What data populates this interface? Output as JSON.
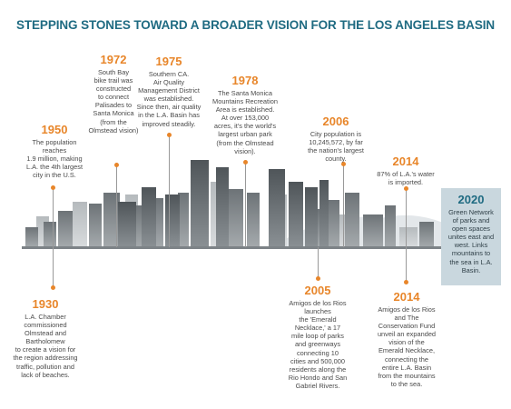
{
  "title": "STEPPING STONES TOWARD A BROADER VISION FOR THE LOS ANGELES BASIN",
  "colors": {
    "title": "#1f6b82",
    "year": "#e8862a",
    "dot": "#e8862a",
    "box_2020": "#c9d7de",
    "skyline_dark": "#5e6468",
    "skyline_light": "#c4c8cb"
  },
  "events": [
    {
      "year": "1930",
      "lines": [
        "L.A. Chamber",
        "commissioned",
        "Olmstead and",
        "Bartholomew",
        "to create a vision for",
        "the region addressing",
        "traffic, pollution and",
        "lack of beaches."
      ]
    },
    {
      "year": "1950",
      "lines": [
        "The population",
        "reaches",
        "1.9 million, making",
        "L.A. the 4th largest",
        "city in the U.S."
      ]
    },
    {
      "year": "1972",
      "lines": [
        "South Bay",
        "bike trail was",
        "constructed",
        "to connect",
        "Palisades to",
        "Santa Monica",
        "(from the",
        "Olmstead vision)"
      ]
    },
    {
      "year": "1975",
      "lines": [
        "Southern CA.",
        "Air Quality",
        "Management District",
        "was established.",
        "Since then, air quality",
        "in the L.A. Basin has",
        "improved steadily."
      ]
    },
    {
      "year": "1978",
      "lines": [
        "The Santa Monica",
        "Mountains Recreation",
        "Area is established.",
        "At over 153,000",
        "acres, it's the world's",
        "largest urban park",
        "(from the Olmstead",
        "vision)."
      ]
    },
    {
      "year": "2005",
      "lines": [
        "Amigos de los Rios",
        "launches",
        "the 'Emerald",
        "Necklace,' a 17",
        "mile loop of parks",
        "and greenways",
        "connecting 10",
        "cities and 500,000",
        "residents along the",
        "Rio Hondo and San",
        "Gabriel Rivers."
      ]
    },
    {
      "year": "2006",
      "lines": [
        "City population is",
        "10,245,572, by far",
        "the nation's largest",
        "county."
      ]
    },
    {
      "year": "2014",
      "lines": [
        "87% of L.A.'s water",
        "is imported."
      ]
    },
    {
      "year": "2014",
      "lines": [
        "Amigos de los Rios",
        "and The",
        "Conservation Fund",
        "unveil an expanded",
        "vision of the",
        "Emerald Necklace,",
        "connecting the",
        "entire L.A. Basin",
        "from the mountains",
        "to the sea."
      ]
    },
    {
      "year": "2020",
      "lines": [
        "Green Network",
        "of parks and",
        "open spaces",
        "unites east and",
        "west. Links",
        "mountains to",
        "the sea in L.A.",
        "Basin."
      ]
    }
  ]
}
